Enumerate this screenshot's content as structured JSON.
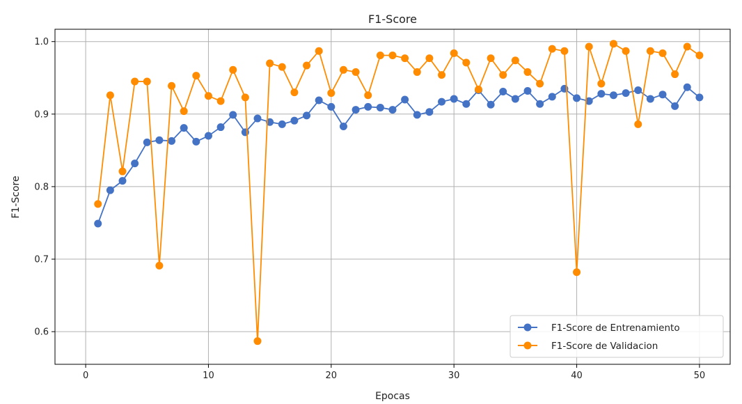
{
  "chart_data": {
    "type": "line",
    "title": "F1-Score",
    "xlabel": "Epocas",
    "ylabel": "F1-Score",
    "xlim": [
      -2.5,
      52.5
    ],
    "ylim": [
      0.555,
      1.017
    ],
    "xticks": [
      0,
      10,
      20,
      30,
      40,
      50
    ],
    "yticks": [
      0.6,
      0.7,
      0.8,
      0.9,
      1.0
    ],
    "xtick_labels": [
      "0",
      "10",
      "20",
      "30",
      "40",
      "50"
    ],
    "ytick_labels": [
      "0.6",
      "0.7",
      "0.8",
      "0.9",
      "1.0"
    ],
    "grid": true,
    "legend_position": "lower-right",
    "x": [
      1,
      2,
      3,
      4,
      5,
      6,
      7,
      8,
      9,
      10,
      11,
      12,
      13,
      14,
      15,
      16,
      17,
      18,
      19,
      20,
      21,
      22,
      23,
      24,
      25,
      26,
      27,
      28,
      29,
      30,
      31,
      32,
      33,
      34,
      35,
      36,
      37,
      38,
      39,
      40,
      41,
      42,
      43,
      44,
      45,
      46,
      47,
      48,
      49,
      50
    ],
    "series": [
      {
        "name": "F1-Score de Entrenamiento",
        "color": "#4472c4",
        "values": [
          0.749,
          0.795,
          0.808,
          0.832,
          0.861,
          0.864,
          0.863,
          0.881,
          0.862,
          0.87,
          0.882,
          0.899,
          0.875,
          0.894,
          0.889,
          0.886,
          0.891,
          0.898,
          0.919,
          0.91,
          0.883,
          0.906,
          0.91,
          0.909,
          0.906,
          0.92,
          0.899,
          0.903,
          0.917,
          0.921,
          0.914,
          0.933,
          0.913,
          0.931,
          0.921,
          0.932,
          0.914,
          0.924,
          0.935,
          0.922,
          0.918,
          0.928,
          0.926,
          0.929,
          0.933,
          0.921,
          0.927,
          0.911,
          0.937,
          0.923
        ]
      },
      {
        "name": "F1-Score de Validacion",
        "color": "#ff8c00",
        "values": [
          0.776,
          0.926,
          0.821,
          0.945,
          0.945,
          0.691,
          0.939,
          0.904,
          0.953,
          0.925,
          0.918,
          0.961,
          0.923,
          0.587,
          0.97,
          0.965,
          0.93,
          0.967,
          0.987,
          0.929,
          0.961,
          0.958,
          0.926,
          0.981,
          0.981,
          0.977,
          0.958,
          0.977,
          0.954,
          0.984,
          0.971,
          0.934,
          0.977,
          0.954,
          0.974,
          0.958,
          0.942,
          0.99,
          0.987,
          0.682,
          0.993,
          0.942,
          0.997,
          0.987,
          0.886,
          0.987,
          0.984,
          0.955,
          0.993,
          0.981
        ]
      }
    ]
  }
}
